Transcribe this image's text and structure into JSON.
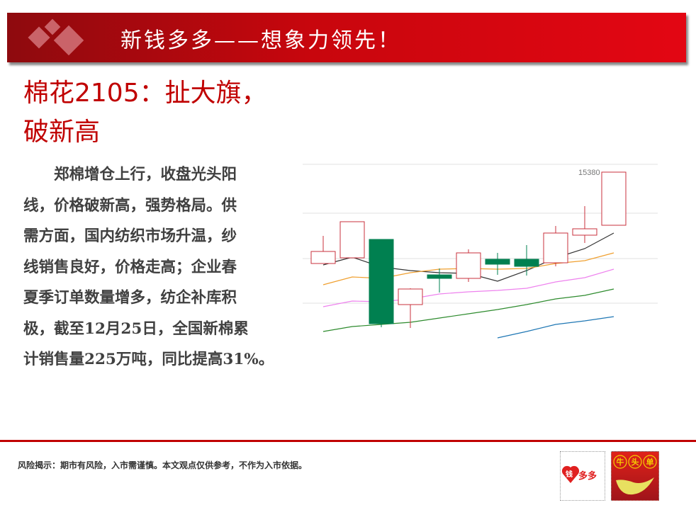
{
  "banner": {
    "title": "新钱多多——想象力领先！"
  },
  "headline": {
    "line1": "棉花2105：扯大旗，",
    "line2": "破新高"
  },
  "body": {
    "lines": [
      "　　郑棉增仓上行，收盘光头阳",
      "线，价格破新高，强势格局。供",
      "需方面，国内纺织市场升温，纱",
      "线销售良好，价格走高；企业春",
      "夏季订单数量增多，纺企补库积",
      "极，截至12月25日，全国新棉累",
      "计销售量225万吨，同比提高31%。"
    ]
  },
  "footer": {
    "disclaimer": "风险揭示：期市有风险，入市需谨慎。本文观点仅供参考，不作为入市依据。",
    "logo1_text": "钱多多",
    "logo2_text": "牛头单"
  },
  "chart_data": {
    "type": "candlestick",
    "ylim": [
      14400,
      15424
    ],
    "gridlines": [
      15424,
      15148,
      14892,
      14640
    ],
    "grid": true,
    "annotation": "15380",
    "colors": {
      "up": "#c8323c",
      "down": "#008050",
      "ma1": "#333333",
      "ma2": "#f0a030",
      "ma3": "#ee82ee",
      "ma4": "#2e8b2e",
      "ma5": "#1f77b4"
    },
    "candles": [
      {
        "open": 14864,
        "high": 15020,
        "low": 14864,
        "close": 14932
      },
      {
        "open": 14896,
        "high": 15100,
        "low": 14896,
        "close": 15100
      },
      {
        "open": 15000,
        "high": 15000,
        "low": 14504,
        "close": 14524
      },
      {
        "open": 14632,
        "high": 14724,
        "low": 14500,
        "close": 14720
      },
      {
        "open": 14800,
        "high": 14836,
        "low": 14700,
        "close": 14780
      },
      {
        "open": 14780,
        "high": 14944,
        "low": 14760,
        "close": 14924
      },
      {
        "open": 14888,
        "high": 14924,
        "low": 14800,
        "close": 14860
      },
      {
        "open": 14888,
        "high": 14968,
        "low": 14796,
        "close": 14848
      },
      {
        "open": 14868,
        "high": 15076,
        "low": 14848,
        "close": 15036
      },
      {
        "open": 15024,
        "high": 15188,
        "low": 14980,
        "close": 15060
      },
      {
        "open": 15080,
        "high": 15380,
        "low": 15080,
        "close": 15380
      }
    ],
    "series": [
      {
        "color": "#333333",
        "values": [
          14856,
          14900,
          14844,
          14824,
          14812,
          14808,
          14764,
          14824,
          14896,
          14948,
          15036
        ]
      },
      {
        "color": "#f0a030",
        "values": [
          14744,
          14788,
          14780,
          14812,
          14832,
          14836,
          14832,
          14836,
          14864,
          14880,
          14924
        ]
      },
      {
        "color": "#ee82ee",
        "values": [
          14620,
          14652,
          14648,
          14664,
          14692,
          14704,
          14712,
          14724,
          14760,
          14784,
          14832
        ]
      },
      {
        "color": "#2e8b2e",
        "values": [
          14480,
          14508,
          14520,
          14532,
          14556,
          14580,
          14604,
          14632,
          14664,
          14684,
          14720
        ]
      },
      {
        "color": "#1f77b4",
        "values": [
          null,
          null,
          null,
          null,
          null,
          null,
          14444,
          14480,
          14520,
          14540,
          14564
        ]
      }
    ]
  }
}
